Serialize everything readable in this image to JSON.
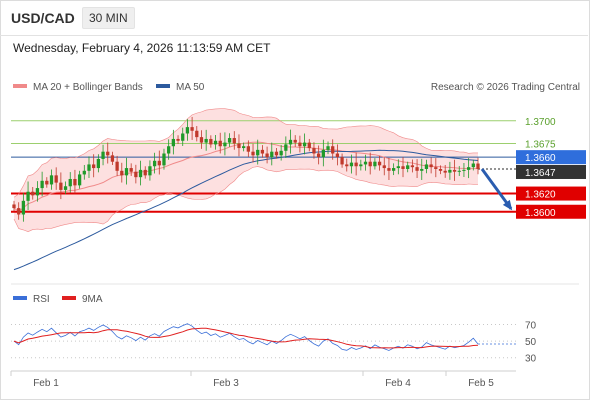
{
  "header": {
    "symbol": "USD/CAD",
    "timeframe": "30 MIN"
  },
  "timestamp": "Wednesday, February 4, 2026 11:13:59 AM CET",
  "legend": {
    "bollinger": "MA 20 + Bollinger Bands",
    "ma50": "MA 50",
    "credit": "Research © 2026 Trading Central"
  },
  "rsi_legend": {
    "rsi": "RSI",
    "ma9": "9MA"
  },
  "colors": {
    "bollinger": "#f08a8a",
    "band_fill": "#fde0e0",
    "ma50": "#2c5a9e",
    "up": "#1f9a2a",
    "down": "#c0392b",
    "support": "#e00000",
    "resistance": "#9ccf6e",
    "current": "#2f6edc",
    "rsi": "#3a6fd8",
    "rsi_ma": "#e02020"
  },
  "chart_data": [
    {
      "type": "candlestick",
      "title": "USD/CAD",
      "timeframe": "30 MIN",
      "x_ticks": [
        "Feb 1",
        "Feb 3",
        "Feb 4",
        "Feb 5"
      ],
      "ylim": [
        1.3525,
        1.3725
      ],
      "levels": [
        {
          "value": "1.3700",
          "kind": "resistance"
        },
        {
          "value": "1.3675",
          "kind": "resistance"
        },
        {
          "value": "1.3660",
          "kind": "pivot"
        },
        {
          "value": "1.3647",
          "kind": "current"
        },
        {
          "value": "1.3620",
          "kind": "support"
        },
        {
          "value": "1.3600",
          "kind": "support"
        }
      ],
      "forecast_arrow": {
        "from": 1.3647,
        "to": 1.36,
        "direction": "down"
      },
      "close_series": [
        1.3604,
        1.3597,
        1.3612,
        1.3622,
        1.3618,
        1.3626,
        1.3634,
        1.363,
        1.364,
        1.3632,
        1.3624,
        1.3628,
        1.3636,
        1.3629,
        1.3641,
        1.3645,
        1.3652,
        1.3648,
        1.3658,
        1.3666,
        1.3662,
        1.3655,
        1.3645,
        1.364,
        1.3648,
        1.3644,
        1.3638,
        1.3646,
        1.364,
        1.365,
        1.3656,
        1.3651,
        1.3664,
        1.3672,
        1.368,
        1.3678,
        1.3686,
        1.3693,
        1.3689,
        1.3682,
        1.3676,
        1.368,
        1.3674,
        1.3678,
        1.3672,
        1.3676,
        1.3681,
        1.3675,
        1.367,
        1.3672,
        1.3666,
        1.3662,
        1.3668,
        1.3664,
        1.366,
        1.3666,
        1.3662,
        1.3667,
        1.3674,
        1.3679,
        1.3676,
        1.3672,
        1.3676,
        1.367,
        1.3664,
        1.366,
        1.3668,
        1.3672,
        1.3664,
        1.366,
        1.3652,
        1.365,
        1.3654,
        1.365,
        1.3652,
        1.3655,
        1.365,
        1.3655,
        1.3651,
        1.3648,
        1.3645,
        1.3648,
        1.365,
        1.3647,
        1.3651,
        1.3649,
        1.3645,
        1.3647,
        1.3652,
        1.3649,
        1.3647,
        1.3645,
        1.3643,
        1.3646,
        1.3644,
        1.3645,
        1.3646,
        1.3649,
        1.3653,
        1.3647
      ]
    },
    {
      "type": "line",
      "title": "RSI",
      "y_ticks": [
        "70",
        "50",
        "30"
      ],
      "ylim": [
        20,
        85
      ]
    }
  ]
}
